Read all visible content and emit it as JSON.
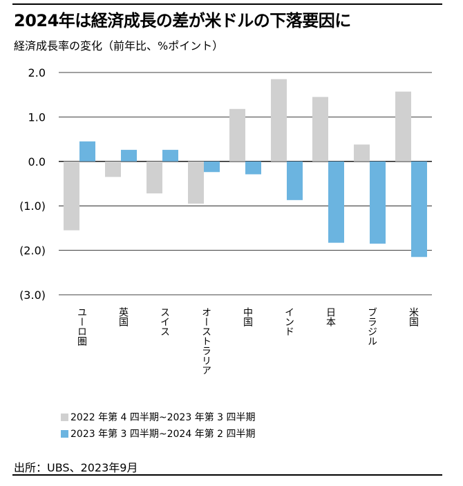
{
  "title": "2024年は経済成長の差が米ドルの下落要因に",
  "subtitle": "経済成長率の変化（前年比、%ポイント）",
  "source": "出所：UBS、2023年9月",
  "colors": {
    "series1": "#d0d0d0",
    "series2": "#6bb4e0",
    "grid": "#000000"
  },
  "chart_data": {
    "type": "bar",
    "categories": [
      "ユーロ圏",
      "英国",
      "スイス",
      "オーストラリア",
      "中国",
      "インド",
      "日本",
      "ブラジル",
      "米国"
    ],
    "series": [
      {
        "name": "2022 年第 4 四半期~2023 年第 3 四半期",
        "values": [
          -1.55,
          -0.35,
          -0.72,
          -0.95,
          1.18,
          1.85,
          1.45,
          0.38,
          1.57
        ]
      },
      {
        "name": "2023 年第 3 四半期~2024 年第 2 四半期",
        "values": [
          0.45,
          0.26,
          0.26,
          -0.24,
          -0.29,
          -0.87,
          -1.83,
          -1.85,
          -2.15
        ]
      }
    ],
    "ylim": [
      -3.0,
      2.0
    ],
    "y_ticks": [
      2.0,
      1.0,
      0.0,
      -1.0,
      -2.0,
      -3.0
    ],
    "y_tick_labels": [
      "2.0",
      "1.0",
      "0.0",
      "(1.0)",
      "(2.0)",
      "(3.0)"
    ],
    "grid": true,
    "legend_position": "bottom-left"
  }
}
